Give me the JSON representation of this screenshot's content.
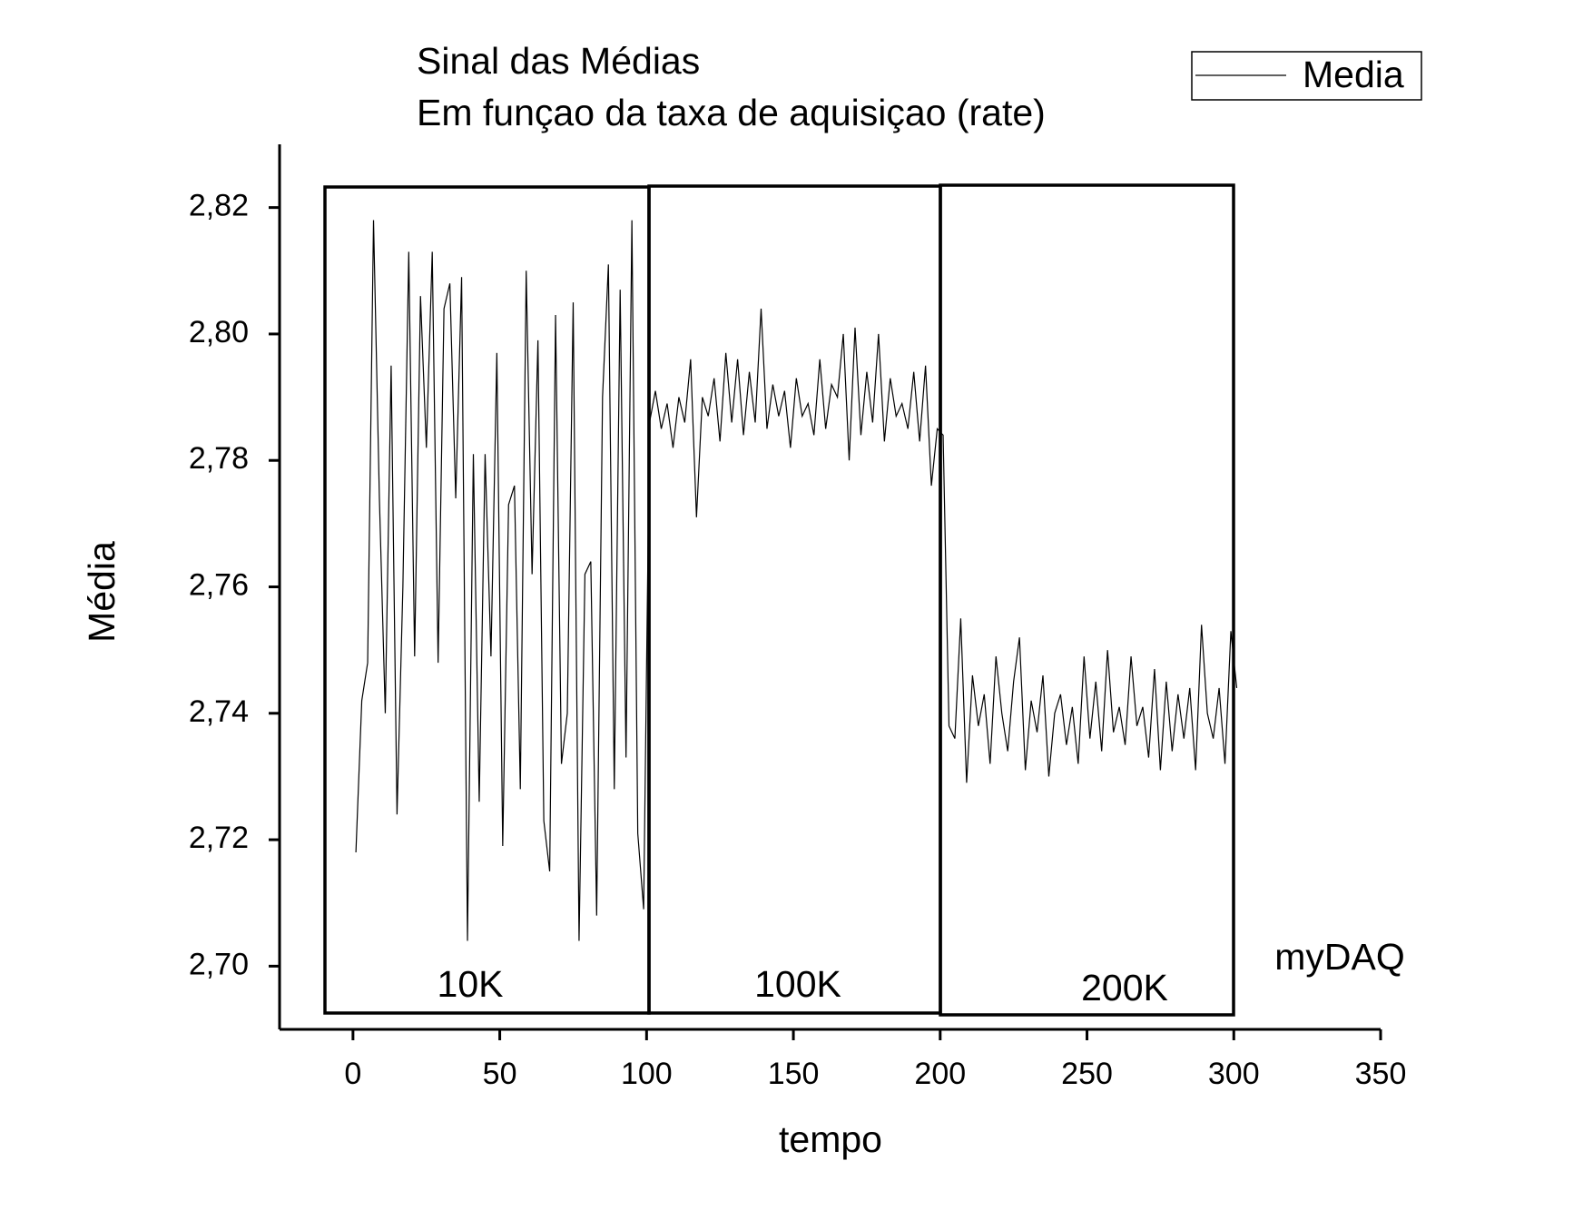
{
  "chart_data": {
    "type": "line",
    "title": "Sinal das Médias",
    "subtitle": "Em funçao da taxa de aquisiçao (rate)",
    "x_label": "tempo",
    "y_label": "Média",
    "annotations": [
      "10K",
      "100K",
      "200K",
      "myDAQ"
    ],
    "legend": "top-right",
    "xlim": [
      -25,
      350
    ],
    "ylim": [
      2.69,
      2.83
    ],
    "xticks": [
      0,
      50,
      100,
      150,
      200,
      250,
      300,
      350
    ],
    "yticks": [
      {
        "value": 2.7,
        "label": "2,70"
      },
      {
        "value": 2.72,
        "label": "2,72"
      },
      {
        "value": 2.74,
        "label": "2,74"
      },
      {
        "value": 2.76,
        "label": "2,76"
      },
      {
        "value": 2.78,
        "label": "2,78"
      },
      {
        "value": 2.8,
        "label": "2,80"
      },
      {
        "value": 2.82,
        "label": "2,82"
      }
    ],
    "x": [
      1,
      3,
      5,
      7,
      9,
      11,
      13,
      15,
      17,
      19,
      21,
      23,
      25,
      27,
      29,
      31,
      33,
      35,
      37,
      39,
      41,
      43,
      45,
      47,
      49,
      51,
      53,
      55,
      57,
      59,
      61,
      63,
      65,
      67,
      69,
      71,
      73,
      75,
      77,
      79,
      81,
      83,
      85,
      87,
      89,
      91,
      93,
      95,
      97,
      99,
      101,
      103,
      105,
      107,
      109,
      111,
      113,
      115,
      117,
      119,
      121,
      123,
      125,
      127,
      129,
      131,
      133,
      135,
      137,
      139,
      141,
      143,
      145,
      147,
      149,
      151,
      153,
      155,
      157,
      159,
      161,
      163,
      165,
      167,
      169,
      171,
      173,
      175,
      177,
      179,
      181,
      183,
      185,
      187,
      189,
      191,
      193,
      195,
      197,
      199,
      201,
      203,
      205,
      207,
      209,
      211,
      213,
      215,
      217,
      219,
      221,
      223,
      225,
      227,
      229,
      231,
      233,
      235,
      237,
      239,
      241,
      243,
      245,
      247,
      249,
      251,
      253,
      255,
      257,
      259,
      261,
      263,
      265,
      267,
      269,
      271,
      273,
      275,
      277,
      279,
      281,
      283,
      285,
      287,
      289,
      291,
      293,
      295,
      297,
      299,
      301
    ],
    "series": [
      {
        "name": "Media",
        "color": "#000000",
        "values": [
          2.718,
          2.742,
          2.748,
          2.818,
          2.774,
          2.74,
          2.795,
          2.724,
          2.76,
          2.813,
          2.749,
          2.806,
          2.782,
          2.813,
          2.748,
          2.804,
          2.808,
          2.774,
          2.809,
          2.704,
          2.781,
          2.726,
          2.781,
          2.749,
          2.797,
          2.719,
          2.773,
          2.776,
          2.728,
          2.81,
          2.762,
          2.799,
          2.723,
          2.715,
          2.803,
          2.732,
          2.74,
          2.805,
          2.704,
          2.762,
          2.764,
          2.708,
          2.79,
          2.811,
          2.728,
          2.807,
          2.733,
          2.818,
          2.721,
          2.709,
          2.786,
          2.791,
          2.785,
          2.789,
          2.782,
          2.79,
          2.786,
          2.796,
          2.771,
          2.79,
          2.787,
          2.793,
          2.783,
          2.797,
          2.786,
          2.796,
          2.784,
          2.794,
          2.786,
          2.804,
          2.785,
          2.792,
          2.787,
          2.791,
          2.782,
          2.793,
          2.787,
          2.789,
          2.784,
          2.796,
          2.785,
          2.792,
          2.79,
          2.8,
          2.78,
          2.801,
          2.784,
          2.794,
          2.786,
          2.8,
          2.783,
          2.793,
          2.787,
          2.789,
          2.785,
          2.794,
          2.783,
          2.795,
          2.776,
          2.785,
          2.784,
          2.738,
          2.736,
          2.755,
          2.729,
          2.746,
          2.738,
          2.743,
          2.732,
          2.749,
          2.74,
          2.734,
          2.745,
          2.752,
          2.731,
          2.742,
          2.737,
          2.746,
          2.73,
          2.74,
          2.743,
          2.735,
          2.741,
          2.732,
          2.749,
          2.736,
          2.745,
          2.734,
          2.75,
          2.737,
          2.741,
          2.735,
          2.749,
          2.738,
          2.741,
          2.733,
          2.747,
          2.731,
          2.745,
          2.734,
          2.743,
          2.736,
          2.744,
          2.731,
          2.754,
          2.74,
          2.736,
          2.744,
          2.732,
          2.753,
          2.744
        ]
      }
    ]
  }
}
